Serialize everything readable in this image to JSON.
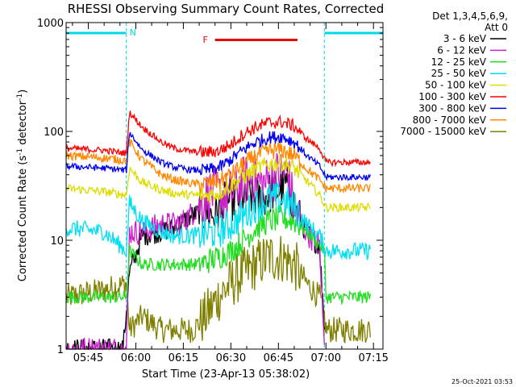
{
  "chart_data": {
    "type": "line",
    "title": "RHESSI Observing Summary Count Rates, Corrected",
    "xlabel": "Start Time (23-Apr-13 05:38:02)",
    "ylabel_main": "Corrected Count Rate (s",
    "ylabel_sup1": "-1",
    "ylabel_mid": " detector",
    "ylabel_sup2": "-1",
    "ylabel_end": ")",
    "y_scale": "log",
    "ylim": [
      1,
      1000
    ],
    "x_range_minutes": [
      38,
      138
    ],
    "x_ticks": [
      {
        "m": 45,
        "label": "05:45"
      },
      {
        "m": 60,
        "label": "06:00"
      },
      {
        "m": 75,
        "label": "06:15"
      },
      {
        "m": 90,
        "label": "06:30"
      },
      {
        "m": 105,
        "label": "06:45"
      },
      {
        "m": 120,
        "label": "07:00"
      },
      {
        "m": 135,
        "label": "07:15"
      }
    ],
    "y_ticks": [
      {
        "v": 1,
        "label": "1"
      },
      {
        "v": 10,
        "label": "10"
      },
      {
        "v": 100,
        "label": "100"
      },
      {
        "v": 1000,
        "label": "1000"
      }
    ],
    "legend": {
      "placement": "right",
      "header1": "Det 1,3,4,5,6,9,",
      "header2": "Att 0"
    },
    "footer_timestamp": "25-Oct-2021 03:53",
    "night_intervals": [
      [
        38,
        57
      ],
      [
        119.5,
        138
      ]
    ],
    "night_bar_label": "N",
    "flare_bar": {
      "label": "F",
      "start": 85,
      "end": 111
    },
    "series": [
      {
        "name": "3 - 6 keV",
        "color": "#000000",
        "x": [
          38,
          56,
          58,
          62,
          68,
          72,
          75,
          78,
          82,
          85,
          88,
          91,
          94,
          97,
          100,
          103,
          106,
          108,
          110,
          113,
          116,
          118,
          119.5
        ],
        "y": [
          1,
          1,
          5,
          11,
          12,
          13,
          15,
          17,
          18,
          17,
          22,
          24,
          26,
          25,
          24,
          28,
          30,
          33,
          20,
          13,
          10,
          9,
          1.5
        ]
      },
      {
        "name": "6 - 12 keV",
        "color": "#cc22cc",
        "x": [
          38,
          57,
          58,
          62,
          68,
          72,
          75,
          78,
          82,
          85,
          88,
          91,
          94,
          97,
          100,
          103,
          106,
          108,
          110,
          113,
          116,
          118,
          119.5
        ],
        "y": [
          1,
          1,
          12,
          12,
          14,
          14,
          15,
          18,
          25,
          28,
          25,
          28,
          35,
          38,
          32,
          38,
          42,
          40,
          20,
          13,
          10,
          9,
          1
        ]
      },
      {
        "name": "12 - 25 keV",
        "color": "#22dd22",
        "x": [
          38,
          57,
          58,
          62,
          68,
          72,
          78,
          82,
          86,
          90,
          94,
          98,
          102,
          106,
          110,
          114,
          118,
          119.5,
          120,
          134
        ],
        "y": [
          3,
          3,
          8,
          6,
          6,
          6,
          6,
          6.3,
          7,
          8,
          10,
          13,
          15,
          16,
          15,
          12,
          9,
          8,
          3,
          3
        ]
      },
      {
        "name": "25 - 50 keV",
        "color": "#00e0f0",
        "x": [
          38,
          50,
          57,
          58,
          62,
          68,
          72,
          78,
          82,
          86,
          90,
          94,
          98,
          102,
          106,
          110,
          114,
          118,
          120,
          134
        ],
        "y": [
          13,
          12,
          8,
          22,
          15,
          12,
          11,
          11,
          11.5,
          12,
          14,
          17,
          21,
          24,
          24,
          20,
          14,
          11,
          8,
          8
        ]
      },
      {
        "name": "50 - 100 keV",
        "color": "#dddd00",
        "x": [
          38,
          50,
          57,
          58,
          62,
          68,
          72,
          78,
          82,
          86,
          90,
          94,
          98,
          102,
          106,
          110,
          114,
          118,
          120,
          134
        ],
        "y": [
          30,
          28,
          26,
          46,
          34,
          29,
          27,
          26,
          26,
          27,
          32,
          38,
          45,
          50,
          52,
          46,
          35,
          26,
          20,
          20
        ]
      },
      {
        "name": "100 - 300 keV",
        "color": "#ff0000",
        "x": [
          38,
          50,
          57,
          58,
          62,
          68,
          72,
          78,
          82,
          86,
          90,
          94,
          98,
          102,
          106,
          110,
          114,
          118,
          120,
          134
        ],
        "y": [
          70,
          67,
          63,
          150,
          110,
          80,
          70,
          65,
          64,
          66,
          76,
          95,
          110,
          120,
          122,
          112,
          85,
          70,
          52,
          52
        ]
      },
      {
        "name": "300 - 800 keV",
        "color": "#0000ee",
        "x": [
          38,
          50,
          57,
          58,
          62,
          68,
          72,
          78,
          82,
          86,
          90,
          94,
          98,
          102,
          106,
          110,
          114,
          118,
          120,
          134
        ],
        "y": [
          48,
          46,
          44,
          98,
          68,
          52,
          47,
          44,
          44,
          46,
          55,
          68,
          80,
          88,
          90,
          80,
          60,
          48,
          38,
          38
        ]
      },
      {
        "name": "800 - 7000 keV",
        "color": "#ff8800",
        "x": [
          38,
          50,
          57,
          58,
          62,
          68,
          72,
          78,
          82,
          86,
          90,
          94,
          98,
          102,
          106,
          110,
          114,
          118,
          120,
          134
        ],
        "y": [
          60,
          57,
          54,
          80,
          55,
          40,
          36,
          33,
          33,
          35,
          40,
          50,
          60,
          66,
          68,
          60,
          45,
          36,
          30,
          30
        ]
      },
      {
        "name": "7000 - 15000 keV",
        "color": "#808000",
        "x": [
          38,
          50,
          57,
          58,
          62,
          68,
          72,
          78,
          82,
          86,
          90,
          94,
          98,
          102,
          106,
          110,
          114,
          118,
          119.5,
          120,
          134
        ],
        "y": [
          3,
          3.5,
          4,
          1.5,
          2,
          1.5,
          1.5,
          1.5,
          2,
          3,
          4,
          5,
          6,
          7,
          7,
          6,
          4,
          3,
          2,
          1.5,
          1.5
        ]
      }
    ]
  }
}
